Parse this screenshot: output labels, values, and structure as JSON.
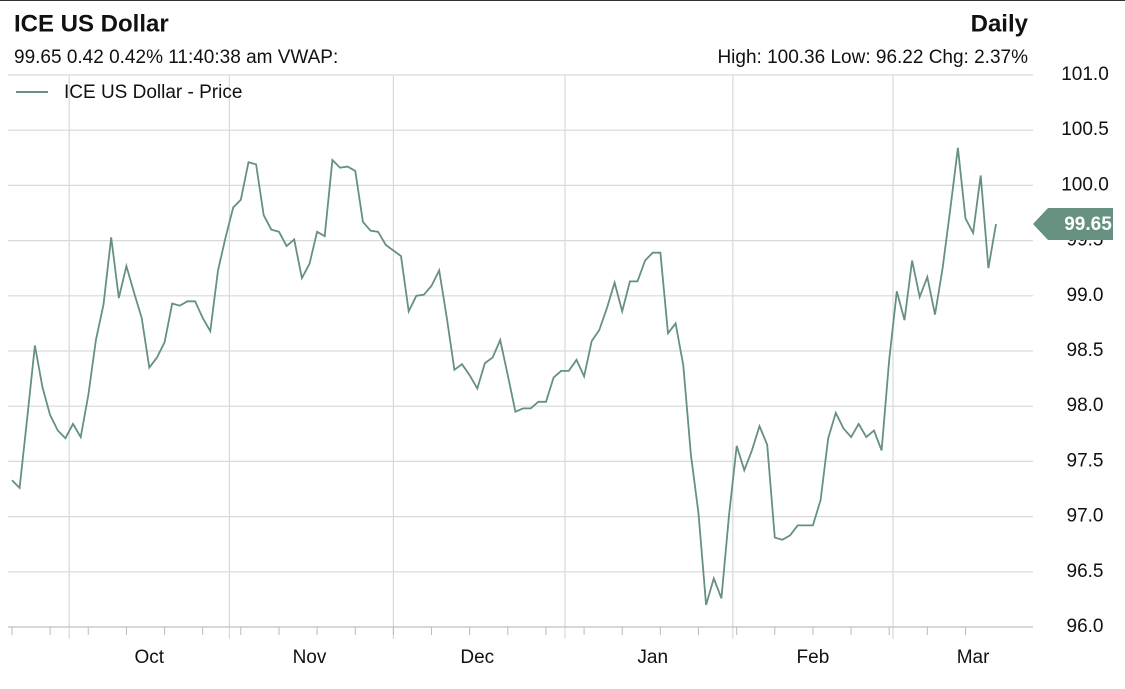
{
  "chart_data": {
    "type": "line",
    "title": "ICE US Dollar",
    "period": "Daily",
    "quote_line": "99.65 0.42 0.42% 11:40:38 am VWAP:",
    "stats_line": "High: 100.36 Low: 96.22 Chg: 2.37%",
    "categories": [
      null,
      null,
      null,
      null,
      null,
      null,
      null,
      null,
      null,
      null,
      null,
      null,
      null,
      null,
      null,
      null,
      null,
      null,
      "Oct",
      null,
      null,
      null,
      null,
      null,
      null,
      null,
      null,
      null,
      null,
      null,
      null,
      null,
      null,
      null,
      null,
      null,
      null,
      null,
      null,
      "Nov",
      null,
      null,
      null,
      null,
      null,
      null,
      null,
      null,
      null,
      null,
      null,
      null,
      null,
      null,
      null,
      null,
      null,
      null,
      null,
      null,
      null,
      "Dec",
      null,
      null,
      null,
      null,
      null,
      null,
      null,
      null,
      null,
      null,
      null,
      null,
      null,
      null,
      null,
      null,
      null,
      null,
      null,
      null,
      null,
      null,
      "Jan",
      null,
      null,
      null,
      null,
      null,
      null,
      null,
      null,
      null,
      null,
      null,
      null,
      null,
      null,
      null,
      null,
      null,
      null,
      null,
      null,
      "Feb",
      null,
      null,
      null,
      null,
      null,
      null,
      null,
      null,
      null,
      null,
      null,
      null,
      null,
      null,
      null,
      null,
      null,
      null,
      null,
      null,
      "Mar",
      null,
      null,
      null
    ],
    "series": [
      {
        "name": "ICE US Dollar - Price",
        "color": "#66907f",
        "values": [
          97.33,
          97.26,
          97.9,
          98.55,
          98.17,
          97.92,
          97.78,
          97.71,
          97.84,
          97.72,
          98.1,
          98.6,
          98.92,
          99.53,
          98.98,
          99.27,
          99.03,
          98.8,
          98.35,
          98.44,
          98.58,
          98.93,
          98.91,
          98.95,
          98.95,
          98.8,
          98.68,
          99.23,
          99.53,
          99.8,
          99.87,
          100.21,
          100.19,
          99.73,
          99.6,
          99.58,
          99.45,
          99.51,
          99.16,
          99.29,
          99.58,
          99.54,
          100.23,
          100.16,
          100.17,
          100.13,
          99.67,
          99.59,
          99.58,
          99.46,
          99.41,
          99.36,
          98.86,
          99.0,
          99.01,
          99.09,
          99.23,
          98.8,
          98.33,
          98.38,
          98.28,
          98.16,
          98.39,
          98.44,
          98.6,
          98.28,
          97.95,
          97.98,
          97.98,
          98.04,
          98.04,
          98.26,
          98.32,
          98.32,
          98.42,
          98.27,
          98.59,
          98.69,
          98.89,
          99.12,
          98.86,
          99.13,
          99.13,
          99.32,
          99.39,
          99.39,
          98.66,
          98.75,
          98.37,
          97.56,
          97.03,
          96.2,
          96.44,
          96.26,
          97.01,
          97.64,
          97.42,
          97.6,
          97.82,
          97.65,
          96.81,
          96.79,
          96.83,
          96.92,
          96.92,
          96.92,
          97.15,
          97.71,
          97.94,
          97.8,
          97.72,
          97.84,
          97.72,
          97.78,
          97.6,
          98.42,
          99.04,
          98.78,
          99.32,
          98.99,
          99.17,
          98.83,
          99.25,
          99.78,
          100.34,
          99.7,
          99.57,
          100.09,
          99.25,
          99.65
        ]
      }
    ],
    "ylim": [
      96.0,
      101.0
    ],
    "yticks": [
      {
        "value": 96,
        "label": "96.0"
      },
      96.5,
      {
        "value": 97,
        "label": "97.0"
      },
      97.5,
      {
        "value": 98,
        "label": "98.0"
      },
      98.5,
      {
        "value": 99,
        "label": "99.0"
      },
      99.5,
      {
        "value": 100,
        "label": "100.0"
      },
      100.5,
      {
        "value": 101,
        "label": "101.0"
      }
    ],
    "grid": true,
    "legend": "top-left"
  }
}
